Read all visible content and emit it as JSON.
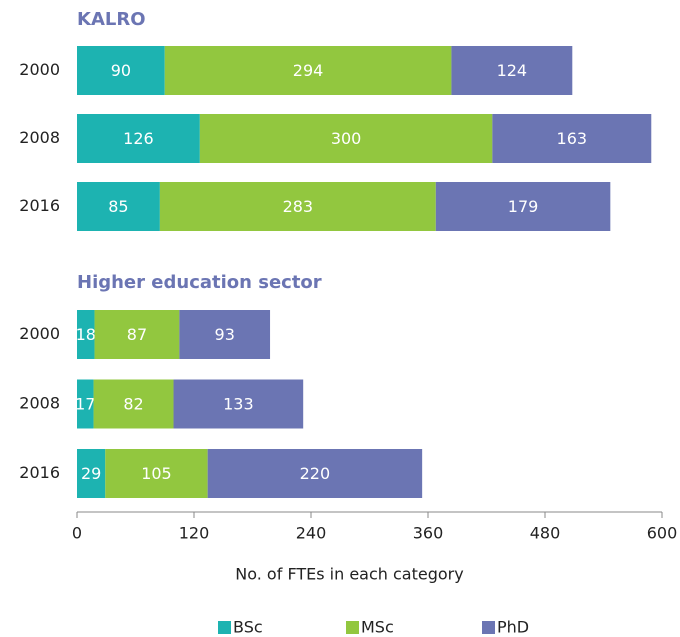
{
  "chart_data": [
    {
      "type": "bar",
      "orientation": "horizontal",
      "stacked": true,
      "title": "KALRO",
      "categories": [
        "2000",
        "2008",
        "2016"
      ],
      "series": [
        {
          "name": "BSc",
          "color": "#1db3b1",
          "values": [
            90,
            126,
            85
          ]
        },
        {
          "name": "MSc",
          "color": "#92c73f",
          "values": [
            294,
            300,
            283
          ]
        },
        {
          "name": "PhD",
          "color": "#6b75b3",
          "values": [
            124,
            163,
            179
          ]
        }
      ],
      "xlim": [
        0,
        600
      ]
    },
    {
      "type": "bar",
      "orientation": "horizontal",
      "stacked": true,
      "title": "Higher education sector",
      "categories": [
        "2000",
        "2008",
        "2016"
      ],
      "series": [
        {
          "name": "BSc",
          "color": "#1db3b1",
          "values": [
            18,
            17,
            29
          ]
        },
        {
          "name": "MSc",
          "color": "#92c73f",
          "values": [
            87,
            82,
            105
          ]
        },
        {
          "name": "PhD",
          "color": "#6b75b3",
          "values": [
            93,
            133,
            220
          ]
        }
      ],
      "xlim": [
        0,
        600
      ],
      "xticks": [
        0,
        120,
        240,
        360,
        480,
        600
      ],
      "xlabel": "No. of FTEs in each category"
    }
  ]
}
